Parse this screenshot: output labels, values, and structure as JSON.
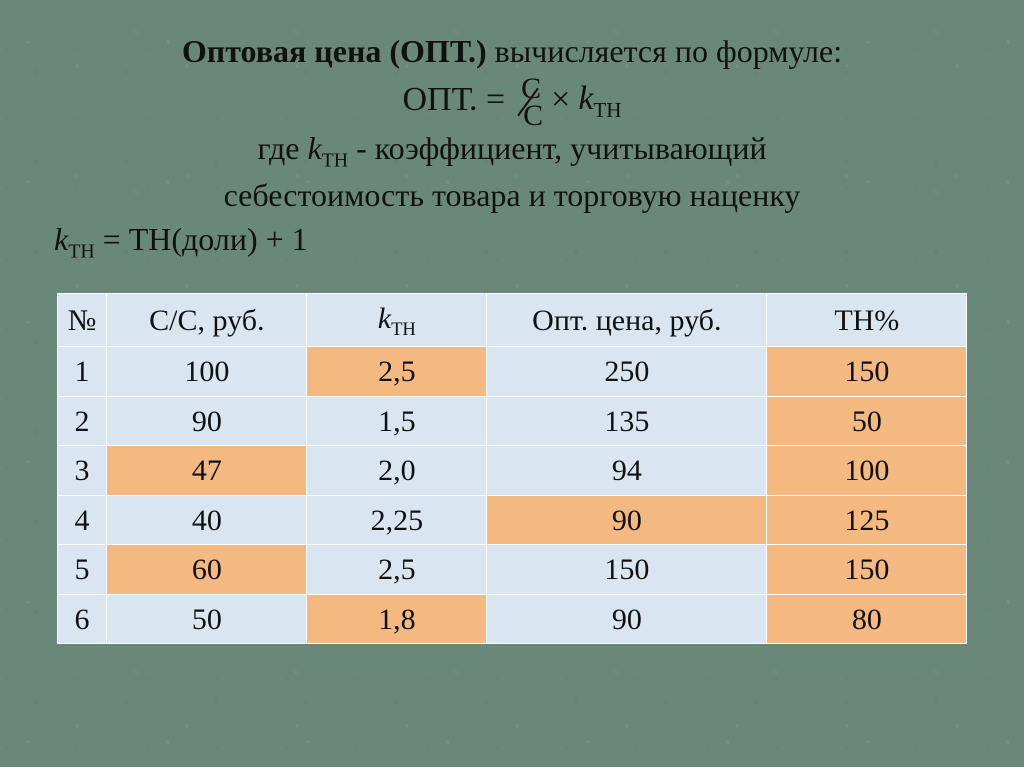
{
  "title_line1_prefix": "Оптовая цена (ОПТ.)",
  "title_line1_suffix": " вычисляется по формуле:",
  "formula": {
    "lhs": "ОПТ. =",
    "frac_num": "С",
    "frac_den": "С",
    "tail": "× ",
    "k": "k",
    "k_sub": "ТН"
  },
  "line2_a": "где ",
  "line2_k": "k",
  "line2_k_sub": "ТН",
  "line2_b": " - коэффициент, учитывающий",
  "line3": "себестоимость товара и торговую наценку",
  "line4_k": "k",
  "line4_k_sub": "ТН",
  "line4_rest": " = ТН(доли) + 1",
  "table": {
    "headers": {
      "n": "№",
      "cc": "С/С, руб.",
      "k_var": "k",
      "k_sub": "ТН",
      "opt": "Опт. цена, руб.",
      "tn": "ТН%"
    },
    "rows": [
      {
        "n": "1",
        "cc": {
          "v": "100",
          "c": "blue"
        },
        "k": {
          "v": "2,5",
          "c": "orange"
        },
        "opt": {
          "v": "250",
          "c": "blue"
        },
        "tn": {
          "v": "150",
          "c": "orange"
        }
      },
      {
        "n": "2",
        "cc": {
          "v": "90",
          "c": "blue"
        },
        "k": {
          "v": "1,5",
          "c": "blue"
        },
        "opt": {
          "v": "135",
          "c": "blue"
        },
        "tn": {
          "v": "50",
          "c": "orange"
        }
      },
      {
        "n": "3",
        "cc": {
          "v": "47",
          "c": "orange"
        },
        "k": {
          "v": "2,0",
          "c": "blue"
        },
        "opt": {
          "v": "94",
          "c": "blue"
        },
        "tn": {
          "v": "100",
          "c": "orange"
        }
      },
      {
        "n": "4",
        "cc": {
          "v": "40",
          "c": "blue"
        },
        "k": {
          "v": "2,25",
          "c": "blue"
        },
        "opt": {
          "v": "90",
          "c": "orange"
        },
        "tn": {
          "v": "125",
          "c": "orange"
        }
      },
      {
        "n": "5",
        "cc": {
          "v": "60",
          "c": "orange"
        },
        "k": {
          "v": "2,5",
          "c": "blue"
        },
        "opt": {
          "v": "150",
          "c": "blue"
        },
        "tn": {
          "v": "150",
          "c": "orange"
        }
      },
      {
        "n": "6",
        "cc": {
          "v": "50",
          "c": "blue"
        },
        "k": {
          "v": "1,8",
          "c": "orange"
        },
        "opt": {
          "v": "90",
          "c": "blue"
        },
        "tn": {
          "v": "80",
          "c": "orange"
        }
      }
    ]
  },
  "colors": {
    "blue": "#d9e6f2",
    "orange": "#f3b981",
    "bg": "#6a8879",
    "text": "#111111",
    "border": "#ffffff"
  }
}
